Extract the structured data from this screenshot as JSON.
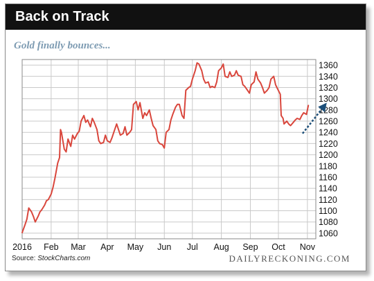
{
  "header": {
    "title": "Back on Track",
    "subtitle": "Gold finally bounces..."
  },
  "footer": {
    "source_prefix": "Source: ",
    "source_name": "StockCharts.com",
    "brand": "DAILYRECKONING.COM"
  },
  "colors": {
    "line": "#d9463c",
    "arrow": "#1c4f79",
    "grid": "#c9c9c9",
    "title_bar": "#111111",
    "subtitle": "#7d9bb2"
  },
  "chart_data": {
    "type": "line",
    "title": "Back on Track",
    "subtitle": "Gold finally bounces...",
    "xlabel": "",
    "ylabel": "",
    "grid": true,
    "y_axis_side": "right",
    "ylim": [
      1050,
      1370
    ],
    "yticks": [
      1060,
      1080,
      1100,
      1120,
      1140,
      1160,
      1180,
      1200,
      1220,
      1240,
      1260,
      1280,
      1300,
      1320,
      1340,
      1360
    ],
    "xlim": [
      "2016-01-01",
      "2016-11-10"
    ],
    "xticks": [
      {
        "label": "2016",
        "date": "2016-01-01"
      },
      {
        "label": "Feb",
        "date": "2016-02-01"
      },
      {
        "label": "Mar",
        "date": "2016-03-01"
      },
      {
        "label": "Apr",
        "date": "2016-04-01"
      },
      {
        "label": "May",
        "date": "2016-05-01"
      },
      {
        "label": "Jun",
        "date": "2016-06-01"
      },
      {
        "label": "Jul",
        "date": "2016-07-01"
      },
      {
        "label": "Aug",
        "date": "2016-08-01"
      },
      {
        "label": "Sep",
        "date": "2016-09-01"
      },
      {
        "label": "Oct",
        "date": "2016-10-01"
      },
      {
        "label": "Nov",
        "date": "2016-11-01"
      }
    ],
    "series": [
      {
        "points": [
          [
            "2016-01-01",
            1061
          ],
          [
            "2016-01-04",
            1075
          ],
          [
            "2016-01-06",
            1085
          ],
          [
            "2016-01-08",
            1105
          ],
          [
            "2016-01-11",
            1098
          ],
          [
            "2016-01-13",
            1090
          ],
          [
            "2016-01-15",
            1080
          ],
          [
            "2016-01-18",
            1090
          ],
          [
            "2016-01-20",
            1098
          ],
          [
            "2016-01-22",
            1102
          ],
          [
            "2016-01-25",
            1110
          ],
          [
            "2016-01-27",
            1118
          ],
          [
            "2016-01-29",
            1120
          ],
          [
            "2016-02-01",
            1130
          ],
          [
            "2016-02-03",
            1142
          ],
          [
            "2016-02-05",
            1158
          ],
          [
            "2016-02-08",
            1185
          ],
          [
            "2016-02-10",
            1195
          ],
          [
            "2016-02-11",
            1245
          ],
          [
            "2016-02-12",
            1240
          ],
          [
            "2016-02-15",
            1210
          ],
          [
            "2016-02-17",
            1205
          ],
          [
            "2016-02-19",
            1228
          ],
          [
            "2016-02-22",
            1215
          ],
          [
            "2016-02-24",
            1235
          ],
          [
            "2016-02-26",
            1228
          ],
          [
            "2016-02-29",
            1238
          ],
          [
            "2016-03-02",
            1242
          ],
          [
            "2016-03-04",
            1260
          ],
          [
            "2016-03-07",
            1270
          ],
          [
            "2016-03-09",
            1258
          ],
          [
            "2016-03-11",
            1262
          ],
          [
            "2016-03-14",
            1250
          ],
          [
            "2016-03-16",
            1265
          ],
          [
            "2016-03-18",
            1258
          ],
          [
            "2016-03-21",
            1245
          ],
          [
            "2016-03-23",
            1225
          ],
          [
            "2016-03-25",
            1220
          ],
          [
            "2016-03-28",
            1222
          ],
          [
            "2016-03-30",
            1235
          ],
          [
            "2016-04-01",
            1225
          ],
          [
            "2016-04-04",
            1222
          ],
          [
            "2016-04-06",
            1230
          ],
          [
            "2016-04-08",
            1240
          ],
          [
            "2016-04-11",
            1255
          ],
          [
            "2016-04-13",
            1245
          ],
          [
            "2016-04-15",
            1235
          ],
          [
            "2016-04-18",
            1238
          ],
          [
            "2016-04-20",
            1250
          ],
          [
            "2016-04-22",
            1235
          ],
          [
            "2016-04-25",
            1240
          ],
          [
            "2016-04-27",
            1245
          ],
          [
            "2016-04-29",
            1290
          ],
          [
            "2016-05-02",
            1295
          ],
          [
            "2016-05-04",
            1280
          ],
          [
            "2016-05-06",
            1293
          ],
          [
            "2016-05-09",
            1265
          ],
          [
            "2016-05-11",
            1275
          ],
          [
            "2016-05-13",
            1270
          ],
          [
            "2016-05-16",
            1280
          ],
          [
            "2016-05-18",
            1265
          ],
          [
            "2016-05-20",
            1252
          ],
          [
            "2016-05-23",
            1245
          ],
          [
            "2016-05-25",
            1225
          ],
          [
            "2016-05-27",
            1220
          ],
          [
            "2016-05-30",
            1218
          ],
          [
            "2016-06-01",
            1212
          ],
          [
            "2016-06-03",
            1240
          ],
          [
            "2016-06-06",
            1245
          ],
          [
            "2016-06-08",
            1262
          ],
          [
            "2016-06-10",
            1272
          ],
          [
            "2016-06-13",
            1285
          ],
          [
            "2016-06-15",
            1290
          ],
          [
            "2016-06-17",
            1290
          ],
          [
            "2016-06-20",
            1270
          ],
          [
            "2016-06-22",
            1265
          ],
          [
            "2016-06-24",
            1315
          ],
          [
            "2016-06-27",
            1320
          ],
          [
            "2016-06-29",
            1322
          ],
          [
            "2016-07-01",
            1335
          ],
          [
            "2016-07-04",
            1350
          ],
          [
            "2016-07-06",
            1364
          ],
          [
            "2016-07-08",
            1362
          ],
          [
            "2016-07-11",
            1350
          ],
          [
            "2016-07-13",
            1335
          ],
          [
            "2016-07-15",
            1328
          ],
          [
            "2016-07-18",
            1330
          ],
          [
            "2016-07-20",
            1320
          ],
          [
            "2016-07-22",
            1322
          ],
          [
            "2016-07-25",
            1320
          ],
          [
            "2016-07-27",
            1330
          ],
          [
            "2016-07-29",
            1350
          ],
          [
            "2016-08-01",
            1355
          ],
          [
            "2016-08-03",
            1362
          ],
          [
            "2016-08-05",
            1340
          ],
          [
            "2016-08-08",
            1338
          ],
          [
            "2016-08-10",
            1348
          ],
          [
            "2016-08-12",
            1340
          ],
          [
            "2016-08-15",
            1342
          ],
          [
            "2016-08-17",
            1350
          ],
          [
            "2016-08-19",
            1342
          ],
          [
            "2016-08-22",
            1340
          ],
          [
            "2016-08-24",
            1325
          ],
          [
            "2016-08-26",
            1322
          ],
          [
            "2016-08-29",
            1315
          ],
          [
            "2016-08-31",
            1310
          ],
          [
            "2016-09-02",
            1325
          ],
          [
            "2016-09-05",
            1330
          ],
          [
            "2016-09-07",
            1348
          ],
          [
            "2016-09-09",
            1335
          ],
          [
            "2016-09-12",
            1328
          ],
          [
            "2016-09-14",
            1320
          ],
          [
            "2016-09-16",
            1310
          ],
          [
            "2016-09-19",
            1315
          ],
          [
            "2016-09-21",
            1320
          ],
          [
            "2016-09-23",
            1335
          ],
          [
            "2016-09-26",
            1340
          ],
          [
            "2016-09-28",
            1325
          ],
          [
            "2016-09-30",
            1318
          ],
          [
            "2016-10-03",
            1308
          ],
          [
            "2016-10-04",
            1270
          ],
          [
            "2016-10-06",
            1265
          ],
          [
            "2016-10-07",
            1255
          ],
          [
            "2016-10-10",
            1260
          ],
          [
            "2016-10-12",
            1255
          ],
          [
            "2016-10-14",
            1252
          ],
          [
            "2016-10-17",
            1258
          ],
          [
            "2016-10-19",
            1262
          ],
          [
            "2016-10-21",
            1265
          ],
          [
            "2016-10-24",
            1263
          ],
          [
            "2016-10-26",
            1270
          ],
          [
            "2016-10-28",
            1275
          ],
          [
            "2016-10-31",
            1272
          ],
          [
            "2016-11-02",
            1288
          ]
        ]
      }
    ],
    "annotation": "upward-arrow"
  }
}
